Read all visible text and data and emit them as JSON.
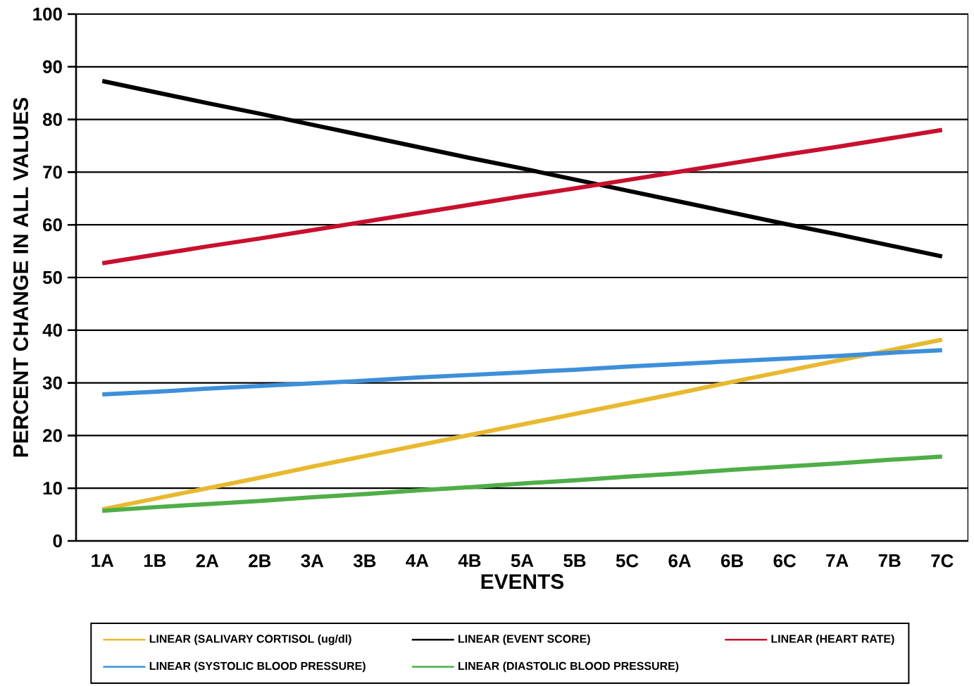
{
  "chart_data": {
    "type": "line",
    "xlabel": "EVENTS",
    "ylabel": "PERCENT CHANGE IN ALL VALUES",
    "categories": [
      "1A",
      "1B",
      "2A",
      "2B",
      "3A",
      "3B",
      "4A",
      "4B",
      "5A",
      "5B",
      "5C",
      "6A",
      "6B",
      "6C",
      "7A",
      "7B",
      "7C"
    ],
    "series": [
      {
        "name": "LINEAR (SALIVARY CORTISOL (ug/dl)",
        "color": "#e8b930",
        "values": [
          6.0,
          8.0,
          10.0,
          12.0,
          14.1,
          16.1,
          18.1,
          20.1,
          22.1,
          24.1,
          26.1,
          28.1,
          30.2,
          32.2,
          34.2,
          36.2,
          38.2
        ]
      },
      {
        "name": "LINEAR (EVENT SCORE)",
        "color": "#000000",
        "values": [
          87.3,
          85.2,
          83.1,
          81.1,
          79.0,
          76.9,
          74.8,
          72.7,
          70.7,
          68.6,
          66.5,
          64.4,
          62.3,
          60.2,
          58.2,
          56.1,
          54.0
        ]
      },
      {
        "name": "LINEAR (HEART RATE)",
        "color": "#c8102e",
        "values": [
          52.7,
          54.3,
          55.9,
          57.4,
          59.0,
          60.6,
          62.2,
          63.8,
          65.4,
          66.9,
          68.5,
          70.1,
          71.7,
          73.3,
          74.8,
          76.4,
          78.0
        ]
      },
      {
        "name": "LINEAR (SYSTOLIC BLOOD PRESSURE)",
        "color": "#3d8fd9",
        "values": [
          27.8,
          28.3,
          28.9,
          29.4,
          29.9,
          30.4,
          31.0,
          31.5,
          32.0,
          32.5,
          33.1,
          33.6,
          34.1,
          34.6,
          35.1,
          35.7,
          36.2
        ]
      },
      {
        "name": "LINEAR (DIASTOLIC BLOOD PRESSURE)",
        "color": "#4fae48",
        "values": [
          5.7,
          6.4,
          7.0,
          7.6,
          8.3,
          8.9,
          9.6,
          10.2,
          10.9,
          11.5,
          12.2,
          12.8,
          13.5,
          14.1,
          14.7,
          15.4,
          16.0
        ]
      }
    ],
    "ylim": [
      0,
      100
    ],
    "yticks": [
      0,
      10,
      20,
      30,
      40,
      50,
      60,
      70,
      80,
      90,
      100
    ],
    "grid": "y",
    "legend": "bottom",
    "marker": "none",
    "line_style": "solid"
  }
}
